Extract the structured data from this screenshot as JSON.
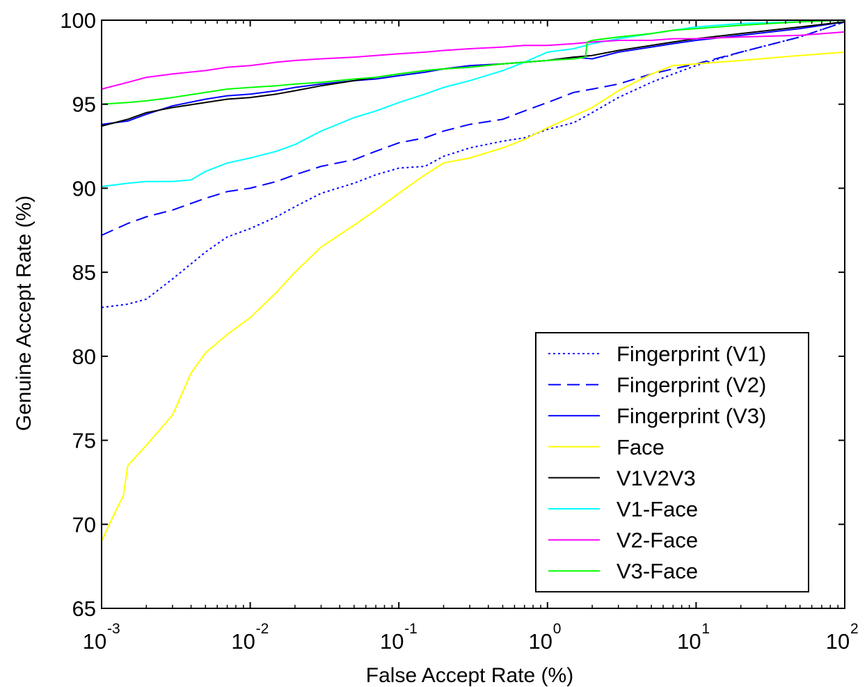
{
  "chart_data": {
    "type": "line",
    "xlabel": "False Accept Rate (%)",
    "ylabel": "Genuine Accept Rate (%)",
    "xscale": "log",
    "xlim": [
      0.001,
      100
    ],
    "ylim": [
      65,
      100
    ],
    "x_ticks": [
      {
        "value": 0.001,
        "base": "10",
        "exp": "-3"
      },
      {
        "value": 0.01,
        "base": "10",
        "exp": "-2"
      },
      {
        "value": 0.1,
        "base": "10",
        "exp": "-1"
      },
      {
        "value": 1,
        "base": "10",
        "exp": "0"
      },
      {
        "value": 10,
        "base": "10",
        "exp": "1"
      },
      {
        "value": 100,
        "base": "10",
        "exp": "2"
      }
    ],
    "y_ticks": [
      65,
      70,
      75,
      80,
      85,
      90,
      95,
      100
    ],
    "grid": false,
    "legend_position": "bottom-right",
    "series": [
      {
        "name": "Fingerprint (V1)",
        "color": "#0000ff",
        "dash": "dotted",
        "x": [
          0.001,
          0.0015,
          0.002,
          0.003,
          0.005,
          0.007,
          0.01,
          0.015,
          0.02,
          0.03,
          0.05,
          0.07,
          0.1,
          0.15,
          0.2,
          0.3,
          0.5,
          0.7,
          1,
          1.5,
          2,
          3,
          5,
          7,
          10,
          20,
          50,
          100
        ],
        "y": [
          82.9,
          83.1,
          83.4,
          84.6,
          86.2,
          87.1,
          87.6,
          88.3,
          88.9,
          89.7,
          90.3,
          90.8,
          91.2,
          91.3,
          91.9,
          92.4,
          92.8,
          93.0,
          93.5,
          93.9,
          94.5,
          95.4,
          96.3,
          96.8,
          97.3,
          98.1,
          99.0,
          99.9
        ]
      },
      {
        "name": "Fingerprint (V2)",
        "color": "#0000ff",
        "dash": "dashed",
        "x": [
          0.001,
          0.0015,
          0.002,
          0.003,
          0.005,
          0.007,
          0.01,
          0.015,
          0.02,
          0.03,
          0.05,
          0.07,
          0.1,
          0.15,
          0.2,
          0.3,
          0.5,
          0.7,
          1,
          1.5,
          2,
          3,
          5,
          7,
          10,
          20,
          50,
          100
        ],
        "y": [
          87.2,
          87.9,
          88.3,
          88.7,
          89.4,
          89.8,
          90.0,
          90.4,
          90.8,
          91.3,
          91.7,
          92.2,
          92.7,
          93.0,
          93.4,
          93.8,
          94.1,
          94.6,
          95.1,
          95.7,
          95.9,
          96.2,
          96.8,
          97.1,
          97.4,
          98.1,
          99.0,
          99.9
        ]
      },
      {
        "name": "Fingerprint (V3)",
        "color": "#0000ff",
        "dash": "solid",
        "x": [
          0.001,
          0.0015,
          0.002,
          0.003,
          0.005,
          0.007,
          0.01,
          0.015,
          0.02,
          0.03,
          0.05,
          0.07,
          0.1,
          0.15,
          0.2,
          0.3,
          0.5,
          0.7,
          1,
          1.5,
          2,
          3,
          5,
          7,
          10,
          20,
          50,
          100
        ],
        "y": [
          93.8,
          94.0,
          94.4,
          94.9,
          95.3,
          95.5,
          95.6,
          95.8,
          96.0,
          96.2,
          96.4,
          96.5,
          96.7,
          96.9,
          97.1,
          97.3,
          97.4,
          97.5,
          97.6,
          97.8,
          97.7,
          98.1,
          98.4,
          98.6,
          98.8,
          99.1,
          99.5,
          99.9
        ]
      },
      {
        "name": "Face",
        "color": "#ffff00",
        "dash": "solid",
        "x": [
          0.001,
          0.0012,
          0.0014,
          0.0015,
          0.002,
          0.003,
          0.004,
          0.005,
          0.007,
          0.01,
          0.015,
          0.02,
          0.03,
          0.05,
          0.07,
          0.1,
          0.15,
          0.2,
          0.3,
          0.5,
          0.7,
          1,
          1.5,
          2,
          3,
          5,
          7,
          10,
          20,
          50,
          100
        ],
        "y": [
          69.0,
          70.5,
          71.7,
          73.5,
          74.7,
          76.5,
          79.0,
          80.2,
          81.3,
          82.3,
          83.8,
          85.0,
          86.5,
          87.8,
          88.7,
          89.7,
          90.8,
          91.5,
          91.8,
          92.4,
          92.9,
          93.6,
          94.3,
          94.8,
          95.8,
          96.8,
          97.3,
          97.4,
          97.6,
          97.9,
          98.1
        ]
      },
      {
        "name": "V1V2V3",
        "color": "#000000",
        "dash": "solid",
        "x": [
          0.001,
          0.0015,
          0.002,
          0.003,
          0.005,
          0.007,
          0.01,
          0.015,
          0.02,
          0.03,
          0.05,
          0.07,
          0.1,
          0.15,
          0.2,
          0.3,
          0.5,
          0.7,
          1,
          1.5,
          2,
          3,
          5,
          7,
          10,
          20,
          50,
          100
        ],
        "y": [
          93.7,
          94.1,
          94.5,
          94.8,
          95.1,
          95.3,
          95.4,
          95.6,
          95.8,
          96.1,
          96.4,
          96.6,
          96.8,
          97.0,
          97.1,
          97.2,
          97.4,
          97.5,
          97.6,
          97.8,
          97.9,
          98.2,
          98.5,
          98.7,
          98.9,
          99.2,
          99.6,
          99.9
        ]
      },
      {
        "name": "V1-Face",
        "color": "#00ffff",
        "dash": "solid",
        "x": [
          0.001,
          0.0015,
          0.002,
          0.003,
          0.004,
          0.005,
          0.007,
          0.01,
          0.015,
          0.02,
          0.03,
          0.05,
          0.07,
          0.1,
          0.15,
          0.2,
          0.3,
          0.5,
          0.7,
          1,
          1.5,
          2,
          3,
          5,
          7,
          10,
          20,
          50,
          100
        ],
        "y": [
          90.1,
          90.3,
          90.4,
          90.4,
          90.5,
          91.0,
          91.5,
          91.8,
          92.2,
          92.6,
          93.4,
          94.2,
          94.6,
          95.1,
          95.6,
          96.0,
          96.4,
          97.0,
          97.5,
          98.1,
          98.3,
          98.6,
          98.9,
          99.2,
          99.4,
          99.6,
          99.8,
          99.9,
          100.0
        ]
      },
      {
        "name": "V2-Face",
        "color": "#ff00ff",
        "dash": "solid",
        "x": [
          0.001,
          0.0015,
          0.002,
          0.003,
          0.005,
          0.007,
          0.01,
          0.015,
          0.02,
          0.03,
          0.05,
          0.07,
          0.1,
          0.15,
          0.2,
          0.3,
          0.5,
          0.7,
          1,
          1.5,
          2,
          3,
          5,
          7,
          10,
          20,
          50,
          100
        ],
        "y": [
          95.9,
          96.3,
          96.6,
          96.8,
          97.0,
          97.2,
          97.3,
          97.5,
          97.6,
          97.7,
          97.8,
          97.9,
          98.0,
          98.1,
          98.2,
          98.3,
          98.4,
          98.5,
          98.5,
          98.6,
          98.7,
          98.8,
          98.8,
          98.9,
          98.9,
          99.0,
          99.1,
          99.3
        ]
      },
      {
        "name": "V3-Face",
        "color": "#00ff00",
        "dash": "solid",
        "x": [
          0.001,
          0.0015,
          0.002,
          0.003,
          0.005,
          0.007,
          0.01,
          0.015,
          0.02,
          0.03,
          0.05,
          0.07,
          0.1,
          0.15,
          0.2,
          0.3,
          0.5,
          0.7,
          1,
          1.5,
          1.8,
          1.85,
          2,
          3,
          5,
          7,
          10,
          20,
          50,
          100
        ],
        "y": [
          95.0,
          95.1,
          95.2,
          95.4,
          95.7,
          95.9,
          96.0,
          96.1,
          96.2,
          96.3,
          96.5,
          96.6,
          96.8,
          97.0,
          97.1,
          97.2,
          97.4,
          97.5,
          97.6,
          97.7,
          97.8,
          98.7,
          98.8,
          99.0,
          99.2,
          99.4,
          99.5,
          99.7,
          99.9,
          100.0
        ]
      }
    ]
  }
}
